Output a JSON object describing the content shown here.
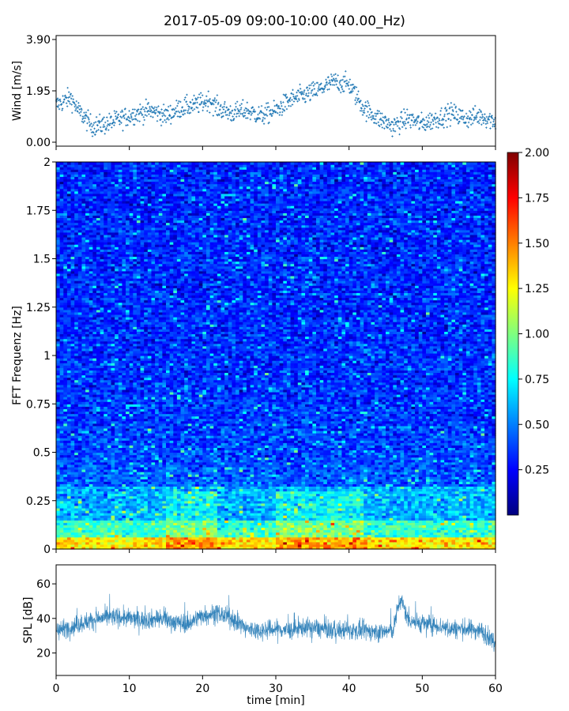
{
  "title": "2017-05-09 09:00-10:00 (40.00_Hz)",
  "chart_data": [
    {
      "type": "scatter",
      "panel": "wind",
      "ylabel": "Wind [m/s]",
      "xlim": [
        0,
        60
      ],
      "ylim": [
        0,
        3.9
      ],
      "yticks": [
        "0.00",
        "1.95",
        "3.90"
      ],
      "color": "#1f77b4",
      "marker": "plus",
      "trend": {
        "x": [
          0,
          2,
          3,
          5,
          7,
          9,
          11,
          13,
          15,
          17,
          19,
          21,
          22,
          24,
          26,
          28,
          30,
          32,
          34,
          36,
          38,
          40,
          42,
          44,
          46,
          48,
          50,
          52,
          54,
          56,
          58,
          60
        ],
        "y": [
          1.4,
          1.7,
          1.2,
          0.6,
          0.7,
          0.9,
          1.1,
          1.2,
          1.0,
          1.3,
          1.4,
          1.6,
          1.3,
          1.1,
          1.2,
          1.0,
          1.2,
          1.6,
          1.8,
          2.0,
          2.3,
          2.2,
          1.3,
          0.9,
          0.6,
          0.9,
          0.7,
          0.9,
          1.1,
          0.9,
          1.0,
          0.8
        ]
      }
    },
    {
      "type": "heatmap",
      "panel": "spectrogram",
      "ylabel": "FFT Frequenz [Hz]",
      "xlim": [
        0,
        60
      ],
      "ylim": [
        0,
        2
      ],
      "yticks": [
        "0",
        "0.25",
        "0.5",
        "0.75",
        "1",
        "1.25",
        "1.5",
        "1.75",
        "2"
      ],
      "colormap": "jet",
      "colorbar": {
        "range": [
          0,
          2
        ],
        "ticks": [
          "0.25",
          "0.50",
          "0.75",
          "1.00",
          "1.25",
          "1.50",
          "1.75",
          "2.00"
        ],
        "colors": [
          "#00007f",
          "#0000ff",
          "#007fff",
          "#00ffff",
          "#7fff7f",
          "#ffff00",
          "#ff7f00",
          "#ff0000",
          "#7f0000"
        ]
      }
    },
    {
      "type": "line",
      "panel": "spl",
      "ylabel": "SPL [dB]",
      "xlabel": "time [min]",
      "xlim": [
        0,
        60
      ],
      "ylim": [
        7,
        71
      ],
      "yticks": [
        "20",
        "40",
        "60"
      ],
      "xticks": [
        "0",
        "10",
        "20",
        "30",
        "40",
        "50",
        "60"
      ],
      "color": "#1f77b4",
      "trend": {
        "x": [
          0,
          2,
          4,
          6,
          8,
          10,
          12,
          14,
          16,
          18,
          20,
          22,
          24,
          26,
          28,
          30,
          32,
          34,
          36,
          38,
          40,
          42,
          44,
          46,
          47,
          48,
          49,
          50,
          52,
          54,
          56,
          58,
          60
        ],
        "y": [
          33,
          35,
          38,
          40,
          41,
          40,
          39,
          40,
          38,
          37,
          42,
          43,
          40,
          34,
          33,
          34,
          33,
          35,
          34,
          33,
          33,
          33,
          32,
          33,
          52,
          40,
          38,
          37,
          36,
          34,
          34,
          33,
          26
        ]
      }
    }
  ]
}
